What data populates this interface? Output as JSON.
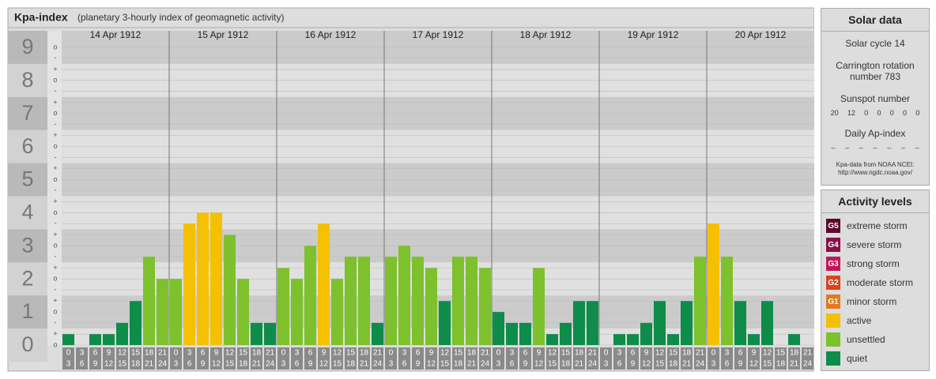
{
  "chart_data": {
    "type": "bar",
    "title": "Kpa-index",
    "subtitle": "(planetary 3-hourly index of geomagnetic activity)",
    "ylim": [
      0,
      9.5
    ],
    "yticks": [
      0,
      1,
      2,
      3,
      4,
      5,
      6,
      7,
      8,
      9
    ],
    "minor_ticks": [
      {
        "value": 0,
        "label": "o"
      },
      {
        "value": 0.33,
        "label": "+"
      },
      {
        "value": 0.67,
        "label": "-"
      },
      {
        "value": 1,
        "label": "o"
      },
      {
        "value": 1.33,
        "label": "+"
      },
      {
        "value": 1.67,
        "label": "-"
      },
      {
        "value": 2,
        "label": "o"
      },
      {
        "value": 2.33,
        "label": "+"
      },
      {
        "value": 2.67,
        "label": "-"
      },
      {
        "value": 3,
        "label": "o"
      },
      {
        "value": 3.33,
        "label": "+"
      },
      {
        "value": 3.67,
        "label": "-"
      },
      {
        "value": 4,
        "label": "o"
      },
      {
        "value": 4.33,
        "label": "+"
      },
      {
        "value": 4.67,
        "label": "-"
      },
      {
        "value": 5,
        "label": "o"
      },
      {
        "value": 5.33,
        "label": "+"
      },
      {
        "value": 5.67,
        "label": "-"
      },
      {
        "value": 6,
        "label": "o"
      },
      {
        "value": 6.33,
        "label": "+"
      },
      {
        "value": 6.67,
        "label": "-"
      },
      {
        "value": 7,
        "label": "o"
      },
      {
        "value": 7.33,
        "label": "+"
      },
      {
        "value": 7.67,
        "label": "-"
      },
      {
        "value": 8,
        "label": "o"
      },
      {
        "value": 8.33,
        "label": "+"
      },
      {
        "value": 8.67,
        "label": "-"
      },
      {
        "value": 9,
        "label": "o"
      }
    ],
    "grid": true,
    "hours": [
      [
        "0",
        "3"
      ],
      [
        "3",
        "6"
      ],
      [
        "6",
        "9"
      ],
      [
        "9",
        "12"
      ],
      [
        "12",
        "15"
      ],
      [
        "15",
        "18"
      ],
      [
        "18",
        "21"
      ],
      [
        "21",
        "24"
      ]
    ],
    "days": [
      {
        "date": "14 Apr 1912",
        "values": [
          0.33,
          0,
          0.33,
          0.33,
          0.67,
          1.33,
          2.67,
          2
        ],
        "colors": [
          "#0e8c4a",
          "#0e8c4a",
          "#0e8c4a",
          "#0e8c4a",
          "#0e8c4a",
          "#0e8c4a",
          "#7dc12c",
          "#7dc12c"
        ]
      },
      {
        "date": "15 Apr 1912",
        "values": [
          2,
          3.67,
          4,
          4,
          3.33,
          2,
          0.67,
          0.67
        ],
        "colors": [
          "#7dc12c",
          "#f5c000",
          "#f5c000",
          "#f5c000",
          "#7dc12c",
          "#7dc12c",
          "#0e8c4a",
          "#0e8c4a"
        ]
      },
      {
        "date": "16 Apr 1912",
        "values": [
          2.33,
          2,
          3,
          3.67,
          2,
          2.67,
          2.67,
          0.67
        ],
        "colors": [
          "#7dc12c",
          "#7dc12c",
          "#7dc12c",
          "#f5c000",
          "#7dc12c",
          "#7dc12c",
          "#7dc12c",
          "#0e8c4a"
        ]
      },
      {
        "date": "17 Apr 1912",
        "values": [
          2.67,
          3,
          2.67,
          2.33,
          1.33,
          2.67,
          2.67,
          2.33
        ],
        "colors": [
          "#7dc12c",
          "#7dc12c",
          "#7dc12c",
          "#7dc12c",
          "#0e8c4a",
          "#7dc12c",
          "#7dc12c",
          "#7dc12c"
        ]
      },
      {
        "date": "18 Apr 1912",
        "values": [
          1,
          0.67,
          0.67,
          2.33,
          0.33,
          0.67,
          1.33,
          1.33
        ],
        "colors": [
          "#0e8c4a",
          "#0e8c4a",
          "#0e8c4a",
          "#7dc12c",
          "#0e8c4a",
          "#0e8c4a",
          "#0e8c4a",
          "#0e8c4a"
        ]
      },
      {
        "date": "19 Apr 1912",
        "values": [
          0,
          0.33,
          0.33,
          0.67,
          1.33,
          0.33,
          1.33,
          2.67
        ],
        "colors": [
          "#0e8c4a",
          "#0e8c4a",
          "#0e8c4a",
          "#0e8c4a",
          "#0e8c4a",
          "#0e8c4a",
          "#0e8c4a",
          "#7dc12c"
        ]
      },
      {
        "date": "20 Apr 1912",
        "values": [
          3.67,
          2.67,
          1.33,
          0.33,
          1.33,
          0,
          0.33,
          0
        ],
        "colors": [
          "#f5c000",
          "#7dc12c",
          "#0e8c4a",
          "#0e8c4a",
          "#0e8c4a",
          "#0e8c4a",
          "#0e8c4a",
          "#0e8c4a"
        ]
      }
    ]
  },
  "solar_data": {
    "title": "Solar data",
    "cycle": "Solar cycle 14",
    "carrington": "Carrington rotation number 783",
    "sunspot_title": "Sunspot number",
    "sunspot_numbers": [
      20,
      12,
      0,
      0,
      0,
      0,
      0
    ],
    "ap_title": "Daily Ap-index",
    "ap_values": [
      "–",
      "–",
      "–",
      "–",
      "–",
      "–",
      "–"
    ],
    "source": "Kpa-data from NOAA NCEI:",
    "source_url": "http://www.ngdc.noaa.gov/"
  },
  "activity_levels": {
    "title": "Activity levels",
    "levels": [
      {
        "badge": "G5",
        "label": "extreme storm",
        "color": "#5a0a2e"
      },
      {
        "badge": "G4",
        "label": "severe storm",
        "color": "#8a0f4c"
      },
      {
        "badge": "G3",
        "label": "strong storm",
        "color": "#c2185b"
      },
      {
        "badge": "G2",
        "label": "moderate storm",
        "color": "#d9441f"
      },
      {
        "badge": "G1",
        "label": "minor storm",
        "color": "#e07b20"
      },
      {
        "label": "active",
        "color": "#f5c000"
      },
      {
        "label": "unsettled",
        "color": "#7dc12c"
      },
      {
        "label": "quiet",
        "color": "#0e8c4a"
      }
    ]
  }
}
